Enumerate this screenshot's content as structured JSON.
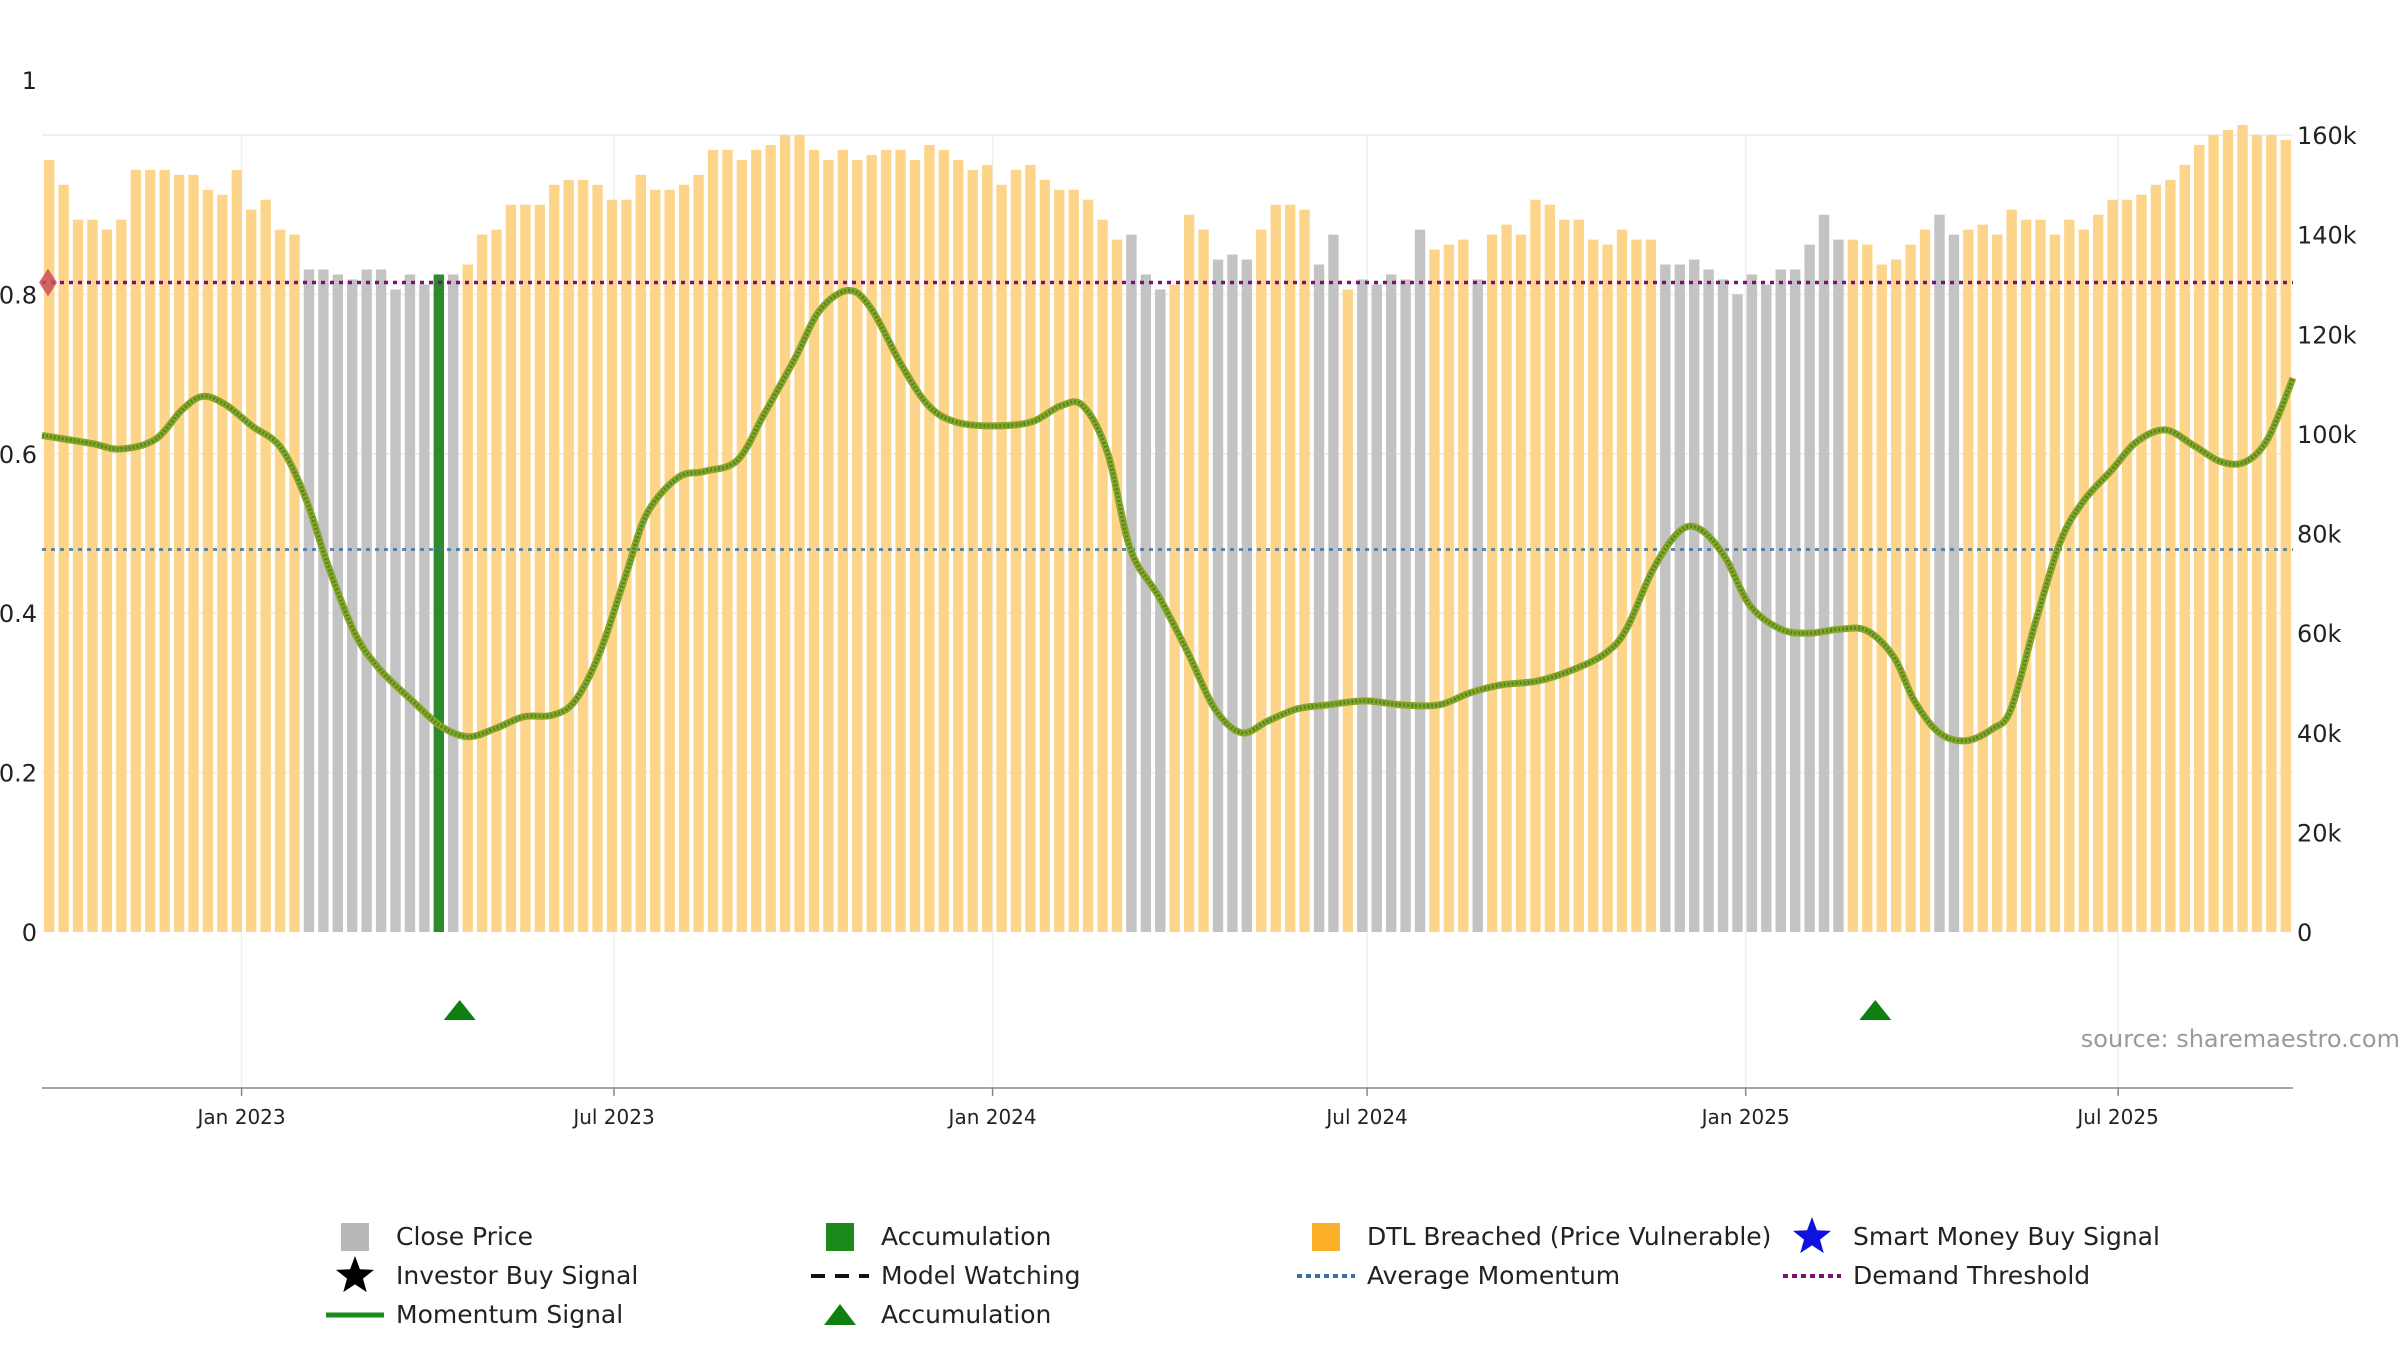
{
  "chart_data": {
    "type": "bar",
    "source": "source: sharemaestro.com",
    "left_axis": {
      "range": [
        0,
        1
      ],
      "ticks": [
        {
          "value": 0,
          "label": "0"
        },
        {
          "value": 0.2,
          "label": "0.2"
        },
        {
          "value": 0.4,
          "label": "0.4"
        },
        {
          "value": 0.6,
          "label": "0.6"
        },
        {
          "value": 0.8,
          "label": "0.8"
        },
        {
          "value": 1,
          "label": "1"
        }
      ]
    },
    "right_axis": {
      "range": [
        0,
        160000
      ],
      "ticks": [
        {
          "value": 0,
          "label": "0"
        },
        {
          "value": 20000,
          "label": "20k"
        },
        {
          "value": 40000,
          "label": "40k"
        },
        {
          "value": 60000,
          "label": "60k"
        },
        {
          "value": 80000,
          "label": "80k"
        },
        {
          "value": 100000,
          "label": "100k"
        },
        {
          "value": 120000,
          "label": "120k"
        },
        {
          "value": 140000,
          "label": "140k"
        },
        {
          "value": 160000,
          "label": "160k"
        }
      ]
    },
    "x_axis": {
      "range": [
        "2022-09-26",
        "2025-09-24"
      ],
      "ticks": [
        {
          "date": "2023-01-01",
          "label": "Jan 2023"
        },
        {
          "date": "2023-07-01",
          "label": "Jul 2023"
        },
        {
          "date": "2024-01-01",
          "label": "Jan 2024"
        },
        {
          "date": "2024-07-01",
          "label": "Jul 2024"
        },
        {
          "date": "2025-01-01",
          "label": "Jan 2025"
        },
        {
          "date": "2025-07-01",
          "label": "Jul 2025"
        }
      ]
    },
    "bars": {
      "start_date": "2022-09-26",
      "interval_days": 7,
      "values": [
        155000,
        150000,
        143000,
        143000,
        141000,
        143000,
        153000,
        153000,
        153000,
        152000,
        152000,
        149000,
        148000,
        153000,
        145000,
        147000,
        141000,
        140000,
        133000,
        133000,
        132000,
        131000,
        133000,
        133000,
        129000,
        132000,
        130000,
        132000,
        132000,
        134000,
        140000,
        141000,
        146000,
        146000,
        146000,
        150000,
        151000,
        151000,
        150000,
        147000,
        147000,
        152000,
        149000,
        149000,
        150000,
        152000,
        157000,
        157000,
        155000,
        157000,
        158000,
        160000,
        160000,
        157000,
        155000,
        157000,
        155000,
        156000,
        157000,
        157000,
        155000,
        158000,
        157000,
        155000,
        153000,
        154000,
        150000,
        153000,
        154000,
        151000,
        149000,
        149000,
        147000,
        143000,
        139000,
        140000,
        132000,
        129000,
        130000,
        144000,
        141000,
        135000,
        136000,
        135000,
        141000,
        146000,
        146000,
        145000,
        134000,
        140000,
        129000,
        131000,
        130000,
        132000,
        131000,
        141000,
        137000,
        138000,
        139000,
        131000,
        140000,
        142000,
        140000,
        147000,
        146000,
        143000,
        143000,
        139000,
        138000,
        141000,
        139000,
        139000,
        134000,
        134000,
        135000,
        133000,
        131000,
        128000,
        132000,
        130000,
        133000,
        133000,
        138000,
        144000,
        139000,
        139000,
        138000,
        134000,
        135000,
        138000,
        141000,
        144000,
        140000,
        141000,
        142000,
        140000,
        145000,
        143000,
        143000,
        140000,
        143000,
        141000,
        144000,
        147000,
        147000,
        148000,
        150000,
        151000,
        154000,
        158000,
        160000,
        161000,
        162000,
        160000,
        160000,
        159000
      ],
      "colors_by_index": {
        "gray_ranges": [
          [
            18,
            28
          ],
          [
            75,
            77
          ],
          [
            81,
            83
          ],
          [
            88,
            89
          ],
          [
            91,
            95
          ],
          [
            99,
            99
          ],
          [
            112,
            124
          ],
          [
            131,
            132
          ]
        ],
        "green_ranges": [
          [
            27,
            27
          ]
        ]
      }
    },
    "momentum_signal": {
      "points": [
        [
          "2022-09-26",
          0.623
        ],
        [
          "2022-10-20",
          0.613
        ],
        [
          "2022-11-03",
          0.606
        ],
        [
          "2022-11-20",
          0.618
        ],
        [
          "2022-12-03",
          0.655
        ],
        [
          "2022-12-13",
          0.672
        ],
        [
          "2022-12-24",
          0.662
        ],
        [
          "2023-01-06",
          0.635
        ],
        [
          "2023-01-20",
          0.608
        ],
        [
          "2023-02-01",
          0.545
        ],
        [
          "2023-02-12",
          0.46
        ],
        [
          "2023-02-25",
          0.375
        ],
        [
          "2023-03-09",
          0.33
        ],
        [
          "2023-03-25",
          0.29
        ],
        [
          "2023-04-08",
          0.258
        ],
        [
          "2023-04-21",
          0.245
        ],
        [
          "2023-05-04",
          0.255
        ],
        [
          "2023-05-18",
          0.27
        ],
        [
          "2023-06-01",
          0.272
        ],
        [
          "2023-06-12",
          0.29
        ],
        [
          "2023-06-24",
          0.35
        ],
        [
          "2023-07-07",
          0.45
        ],
        [
          "2023-07-17",
          0.525
        ],
        [
          "2023-08-01",
          0.57
        ],
        [
          "2023-08-14",
          0.578
        ],
        [
          "2023-08-30",
          0.592
        ],
        [
          "2023-09-12",
          0.65
        ],
        [
          "2023-09-27",
          0.72
        ],
        [
          "2023-10-09",
          0.78
        ],
        [
          "2023-10-23",
          0.805
        ],
        [
          "2023-11-03",
          0.782
        ],
        [
          "2023-11-18",
          0.71
        ],
        [
          "2023-12-01",
          0.66
        ],
        [
          "2023-12-14",
          0.64
        ],
        [
          "2024-01-01",
          0.635
        ],
        [
          "2024-01-20",
          0.64
        ],
        [
          "2024-02-03",
          0.66
        ],
        [
          "2024-02-14",
          0.66
        ],
        [
          "2024-02-26",
          0.6
        ],
        [
          "2024-03-08",
          0.48
        ],
        [
          "2024-03-22",
          0.42
        ],
        [
          "2024-04-05",
          0.35
        ],
        [
          "2024-04-18",
          0.28
        ],
        [
          "2024-05-01",
          0.25
        ],
        [
          "2024-05-14",
          0.265
        ],
        [
          "2024-05-28",
          0.28
        ],
        [
          "2024-06-12",
          0.285
        ],
        [
          "2024-06-30",
          0.29
        ],
        [
          "2024-07-18",
          0.285
        ],
        [
          "2024-08-05",
          0.285
        ],
        [
          "2024-08-20",
          0.3
        ],
        [
          "2024-09-04",
          0.31
        ],
        [
          "2024-09-22",
          0.315
        ],
        [
          "2024-10-10",
          0.33
        ],
        [
          "2024-10-25",
          0.35
        ],
        [
          "2024-11-04",
          0.38
        ],
        [
          "2024-11-17",
          0.455
        ],
        [
          "2024-11-30",
          0.503
        ],
        [
          "2024-12-10",
          0.505
        ],
        [
          "2024-12-22",
          0.47
        ],
        [
          "2025-01-03",
          0.41
        ],
        [
          "2025-01-18",
          0.38
        ],
        [
          "2025-02-01",
          0.375
        ],
        [
          "2025-02-16",
          0.38
        ],
        [
          "2025-03-01",
          0.378
        ],
        [
          "2025-03-14",
          0.345
        ],
        [
          "2025-03-24",
          0.29
        ],
        [
          "2025-04-05",
          0.25
        ],
        [
          "2025-04-18",
          0.24
        ],
        [
          "2025-05-01",
          0.255
        ],
        [
          "2025-05-10",
          0.28
        ],
        [
          "2025-05-22",
          0.39
        ],
        [
          "2025-06-03",
          0.49
        ],
        [
          "2025-06-14",
          0.54
        ],
        [
          "2025-06-28",
          0.58
        ],
        [
          "2025-07-10",
          0.615
        ],
        [
          "2025-07-24",
          0.63
        ],
        [
          "2025-08-07",
          0.61
        ],
        [
          "2025-08-20",
          0.59
        ],
        [
          "2025-09-01",
          0.59
        ],
        [
          "2025-09-12",
          0.62
        ],
        [
          "2025-09-24",
          0.695
        ]
      ]
    },
    "reference_lines": {
      "demand_threshold": 0.815,
      "average_momentum": 0.48
    },
    "colors": {
      "gray_bar": "#c3c3c3",
      "orange_bar": "#fdd58a",
      "green_bar": "#2d8a2d",
      "momentum": "#4e8a1f",
      "accumulation_marker": "#0f800f",
      "demand_threshold": "#7a117a",
      "average_momentum": "#3b6fa0",
      "star_blue": "#1010e0"
    },
    "accumulation_markers": [
      "2023-04-17",
      "2025-03-05"
    ],
    "legend": [
      {
        "label": "Close Price",
        "symbol": "gray-square"
      },
      {
        "label": "Accumulation",
        "symbol": "green-square"
      },
      {
        "label": "DTL Breached (Price Vulnerable)",
        "symbol": "orange-square"
      },
      {
        "label": "Smart Money Buy Signal",
        "symbol": "blue-star"
      },
      {
        "label": "Investor Buy Signal",
        "symbol": "black-star"
      },
      {
        "label": "Model Watching",
        "symbol": "black-dash"
      },
      {
        "label": "Average Momentum",
        "symbol": "blue-dotted"
      },
      {
        "label": "Demand Threshold",
        "symbol": "purple-dotted"
      },
      {
        "label": "Momentum Signal",
        "symbol": "green-line"
      },
      {
        "label": "Accumulation",
        "symbol": "green-triangle"
      }
    ]
  }
}
